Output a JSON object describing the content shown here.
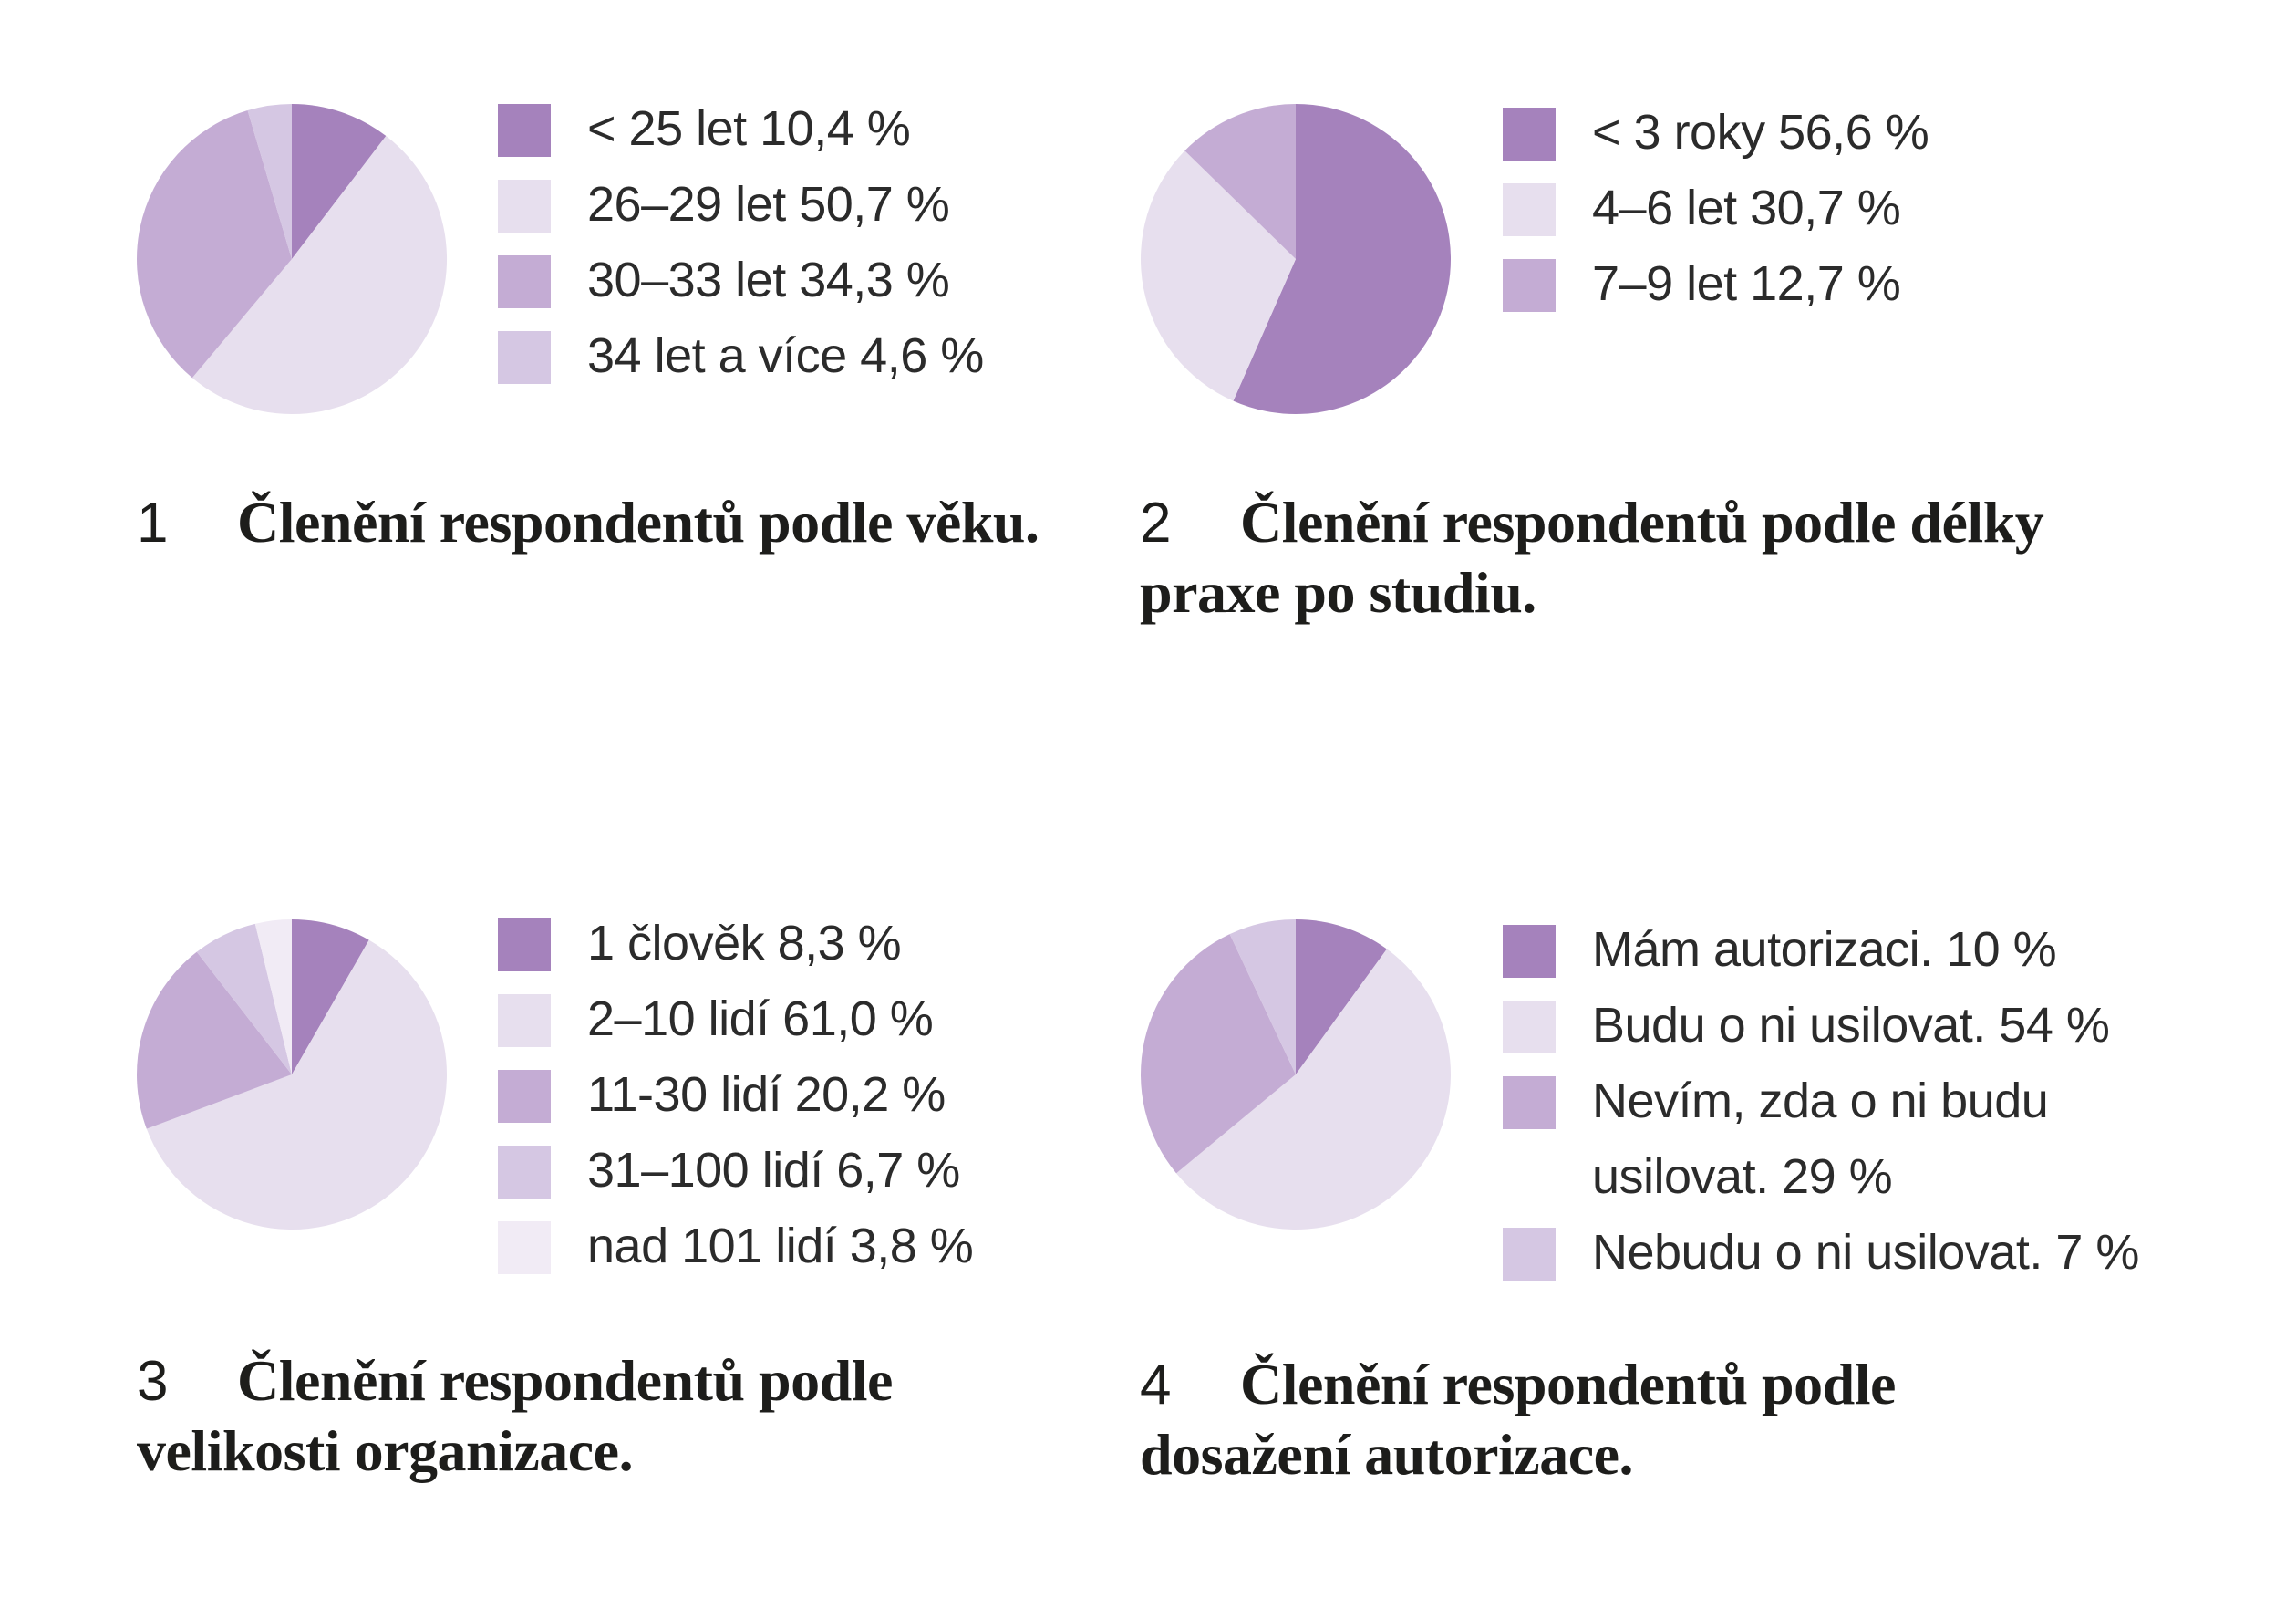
{
  "chart_data": [
    {
      "type": "pie",
      "number": "1",
      "title": "Členění respondentů podle věku.",
      "slices": [
        {
          "label": "< 25 let 10,4 %",
          "value": 10.4,
          "color": "#a582bc"
        },
        {
          "label": "26–29 let 50,7 %",
          "value": 50.7,
          "color": "#e7dfee"
        },
        {
          "label": "30–33 let 34,3 %",
          "value": 34.3,
          "color": "#c4acd4"
        },
        {
          "label": "34 let a více 4,6 %",
          "value": 4.6,
          "color": "#d5c7e3"
        }
      ]
    },
    {
      "type": "pie",
      "number": "2",
      "title": "Členění respondentů podle délky praxe po studiu.",
      "slices": [
        {
          "label": "< 3 roky 56,6 %",
          "value": 56.6,
          "color": "#a582bc"
        },
        {
          "label": "4–6 let 30,7 %",
          "value": 30.7,
          "color": "#e7dfee"
        },
        {
          "label": "7–9 let 12,7 %",
          "value": 12.7,
          "color": "#c4acd4"
        }
      ]
    },
    {
      "type": "pie",
      "number": "3",
      "title": "Členění respondentů podle velikosti organizace.",
      "slices": [
        {
          "label": "1 člověk 8,3 %",
          "value": 8.3,
          "color": "#a582bc"
        },
        {
          "label": "2–10 lidí 61,0 %",
          "value": 61.0,
          "color": "#e7dfee"
        },
        {
          "label": "11-30 lidí 20,2 %",
          "value": 20.2,
          "color": "#c4acd4"
        },
        {
          "label": "31–100 lidí 6,7 %",
          "value": 6.7,
          "color": "#d5c7e3"
        },
        {
          "label": "nad 101 lidí 3,8 %",
          "value": 3.8,
          "color": "#f1ebf5"
        }
      ]
    },
    {
      "type": "pie",
      "number": "4",
      "title": "Členění respondentů podle dosažení autorizace.",
      "slices": [
        {
          "label": "Mám autorizaci. 10 %",
          "value": 10,
          "color": "#a582bc"
        },
        {
          "label": "Budu o ni usilovat. 54 %",
          "value": 54,
          "color": "#e7dfee"
        },
        {
          "label": "Nevím, zda o ni budu usilovat. 29 %",
          "value": 29,
          "color": "#c4acd4"
        },
        {
          "label": "Nebudu o ni usilovat. 7 %",
          "value": 7,
          "color": "#d5c7e3"
        }
      ]
    }
  ]
}
